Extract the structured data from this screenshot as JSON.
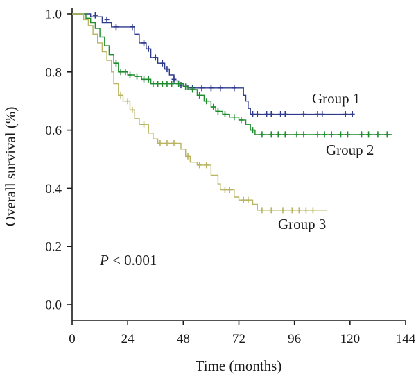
{
  "chart_data": {
    "type": "line",
    "step": true,
    "xlabel": "Time (months)",
    "ylabel": "Overall survival (%)",
    "xlim": [
      0,
      144
    ],
    "ylim": [
      0,
      1.0
    ],
    "xticks": [
      "0",
      "24",
      "48",
      "72",
      "96",
      "120",
      "144"
    ],
    "yticks": [
      "0.0",
      "0.2",
      "0.4",
      "0.6",
      "0.8",
      "1.0"
    ],
    "annotation": {
      "p_italic": "P",
      "p_rest": " < 0.001"
    },
    "grid": false,
    "legend": "inline labels",
    "series": [
      {
        "name": "Group 1",
        "color": "#2e3a8c",
        "values": [
          [
            0,
            1.0
          ],
          [
            8,
            1.0
          ],
          [
            8,
            0.99
          ],
          [
            13,
            0.99
          ],
          [
            13,
            0.97
          ],
          [
            17,
            0.97
          ],
          [
            17,
            0.955
          ],
          [
            27,
            0.955
          ],
          [
            27,
            0.93
          ],
          [
            29,
            0.93
          ],
          [
            29,
            0.9
          ],
          [
            32,
            0.9
          ],
          [
            32,
            0.88
          ],
          [
            34,
            0.88
          ],
          [
            34,
            0.85
          ],
          [
            37,
            0.85
          ],
          [
            37,
            0.83
          ],
          [
            40,
            0.83
          ],
          [
            40,
            0.81
          ],
          [
            42,
            0.81
          ],
          [
            42,
            0.79
          ],
          [
            44,
            0.79
          ],
          [
            44,
            0.77
          ],
          [
            46,
            0.77
          ],
          [
            46,
            0.755
          ],
          [
            50,
            0.755
          ],
          [
            50,
            0.745
          ],
          [
            74,
            0.745
          ],
          [
            74,
            0.72
          ],
          [
            75,
            0.72
          ],
          [
            75,
            0.7
          ],
          [
            76,
            0.7
          ],
          [
            76,
            0.675
          ],
          [
            77,
            0.675
          ],
          [
            77,
            0.655
          ],
          [
            122,
            0.655
          ]
        ],
        "censor": [
          [
            10,
            0.995
          ],
          [
            15,
            0.98
          ],
          [
            19,
            0.955
          ],
          [
            26,
            0.955
          ],
          [
            31,
            0.9
          ],
          [
            33,
            0.88
          ],
          [
            36,
            0.85
          ],
          [
            39,
            0.83
          ],
          [
            41,
            0.81
          ],
          [
            44,
            0.775
          ],
          [
            47,
            0.755
          ],
          [
            52,
            0.745
          ],
          [
            56,
            0.745
          ],
          [
            60,
            0.745
          ],
          [
            64,
            0.745
          ],
          [
            70,
            0.745
          ],
          [
            78,
            0.655
          ],
          [
            80,
            0.655
          ],
          [
            84,
            0.655
          ],
          [
            86,
            0.655
          ],
          [
            90,
            0.655
          ],
          [
            92,
            0.655
          ],
          [
            100,
            0.655
          ],
          [
            106,
            0.655
          ],
          [
            108,
            0.655
          ],
          [
            118,
            0.655
          ],
          [
            121,
            0.655
          ]
        ]
      },
      {
        "name": "Group 2",
        "color": "#1f8c2e",
        "values": [
          [
            0,
            1.0
          ],
          [
            6,
            1.0
          ],
          [
            6,
            0.985
          ],
          [
            8,
            0.985
          ],
          [
            8,
            0.97
          ],
          [
            10,
            0.97
          ],
          [
            10,
            0.95
          ],
          [
            12,
            0.95
          ],
          [
            12,
            0.92
          ],
          [
            14,
            0.92
          ],
          [
            14,
            0.89
          ],
          [
            16,
            0.89
          ],
          [
            16,
            0.86
          ],
          [
            18,
            0.86
          ],
          [
            18,
            0.83
          ],
          [
            20,
            0.83
          ],
          [
            20,
            0.8
          ],
          [
            24,
            0.8
          ],
          [
            24,
            0.79
          ],
          [
            27,
            0.79
          ],
          [
            27,
            0.785
          ],
          [
            30,
            0.785
          ],
          [
            30,
            0.775
          ],
          [
            34,
            0.775
          ],
          [
            34,
            0.76
          ],
          [
            48,
            0.76
          ],
          [
            48,
            0.75
          ],
          [
            50,
            0.75
          ],
          [
            50,
            0.74
          ],
          [
            54,
            0.74
          ],
          [
            54,
            0.72
          ],
          [
            57,
            0.72
          ],
          [
            57,
            0.7
          ],
          [
            60,
            0.7
          ],
          [
            60,
            0.68
          ],
          [
            62,
            0.68
          ],
          [
            62,
            0.665
          ],
          [
            65,
            0.665
          ],
          [
            65,
            0.655
          ],
          [
            68,
            0.655
          ],
          [
            68,
            0.645
          ],
          [
            72,
            0.645
          ],
          [
            72,
            0.635
          ],
          [
            75,
            0.635
          ],
          [
            75,
            0.62
          ],
          [
            77,
            0.62
          ],
          [
            77,
            0.6
          ],
          [
            79,
            0.6
          ],
          [
            79,
            0.585
          ],
          [
            138,
            0.585
          ]
        ],
        "censor": [
          [
            19,
            0.83
          ],
          [
            21,
            0.8
          ],
          [
            23,
            0.8
          ],
          [
            25,
            0.79
          ],
          [
            28,
            0.785
          ],
          [
            31,
            0.775
          ],
          [
            33,
            0.775
          ],
          [
            35,
            0.76
          ],
          [
            37,
            0.76
          ],
          [
            39,
            0.76
          ],
          [
            41,
            0.76
          ],
          [
            43,
            0.76
          ],
          [
            46,
            0.76
          ],
          [
            49,
            0.75
          ],
          [
            52,
            0.74
          ],
          [
            55,
            0.72
          ],
          [
            58,
            0.7
          ],
          [
            61,
            0.68
          ],
          [
            63,
            0.665
          ],
          [
            66,
            0.655
          ],
          [
            70,
            0.645
          ],
          [
            73,
            0.635
          ],
          [
            78,
            0.6
          ],
          [
            82,
            0.585
          ],
          [
            86,
            0.585
          ],
          [
            89,
            0.585
          ],
          [
            92,
            0.585
          ],
          [
            97,
            0.585
          ],
          [
            100,
            0.585
          ],
          [
            106,
            0.585
          ],
          [
            109,
            0.585
          ],
          [
            112,
            0.585
          ],
          [
            116,
            0.585
          ],
          [
            119,
            0.585
          ],
          [
            125,
            0.585
          ],
          [
            128,
            0.585
          ],
          [
            132,
            0.585
          ],
          [
            136,
            0.585
          ]
        ]
      },
      {
        "name": "Group 3",
        "color": "#b8b460",
        "values": [
          [
            0,
            1.0
          ],
          [
            5,
            1.0
          ],
          [
            5,
            0.98
          ],
          [
            7,
            0.98
          ],
          [
            7,
            0.96
          ],
          [
            9,
            0.96
          ],
          [
            9,
            0.93
          ],
          [
            11,
            0.93
          ],
          [
            11,
            0.9
          ],
          [
            13,
            0.9
          ],
          [
            13,
            0.87
          ],
          [
            15,
            0.87
          ],
          [
            15,
            0.84
          ],
          [
            17,
            0.84
          ],
          [
            17,
            0.8
          ],
          [
            18,
            0.8
          ],
          [
            18,
            0.76
          ],
          [
            20,
            0.76
          ],
          [
            20,
            0.72
          ],
          [
            22,
            0.72
          ],
          [
            22,
            0.7
          ],
          [
            25,
            0.7
          ],
          [
            25,
            0.67
          ],
          [
            27,
            0.67
          ],
          [
            27,
            0.64
          ],
          [
            29,
            0.64
          ],
          [
            29,
            0.62
          ],
          [
            33,
            0.62
          ],
          [
            33,
            0.59
          ],
          [
            35,
            0.59
          ],
          [
            35,
            0.57
          ],
          [
            37,
            0.57
          ],
          [
            37,
            0.555
          ],
          [
            47,
            0.555
          ],
          [
            47,
            0.535
          ],
          [
            49,
            0.535
          ],
          [
            49,
            0.51
          ],
          [
            51,
            0.51
          ],
          [
            51,
            0.49
          ],
          [
            54,
            0.49
          ],
          [
            54,
            0.48
          ],
          [
            60,
            0.48
          ],
          [
            60,
            0.445
          ],
          [
            63,
            0.445
          ],
          [
            63,
            0.415
          ],
          [
            64,
            0.415
          ],
          [
            64,
            0.395
          ],
          [
            70,
            0.395
          ],
          [
            70,
            0.37
          ],
          [
            72,
            0.37
          ],
          [
            72,
            0.36
          ],
          [
            78,
            0.36
          ],
          [
            78,
            0.345
          ],
          [
            80,
            0.345
          ],
          [
            80,
            0.325
          ],
          [
            110,
            0.325
          ]
        ],
        "censor": [
          [
            21,
            0.72
          ],
          [
            24,
            0.7
          ],
          [
            26,
            0.67
          ],
          [
            31,
            0.62
          ],
          [
            38,
            0.555
          ],
          [
            41,
            0.555
          ],
          [
            44,
            0.555
          ],
          [
            50,
            0.51
          ],
          [
            55,
            0.48
          ],
          [
            58,
            0.48
          ],
          [
            66,
            0.395
          ],
          [
            68,
            0.395
          ],
          [
            74,
            0.36
          ],
          [
            76,
            0.36
          ],
          [
            82,
            0.325
          ],
          [
            86,
            0.325
          ],
          [
            91,
            0.325
          ],
          [
            95,
            0.325
          ],
          [
            98,
            0.325
          ],
          [
            101,
            0.325
          ],
          [
            104,
            0.325
          ]
        ]
      }
    ]
  }
}
